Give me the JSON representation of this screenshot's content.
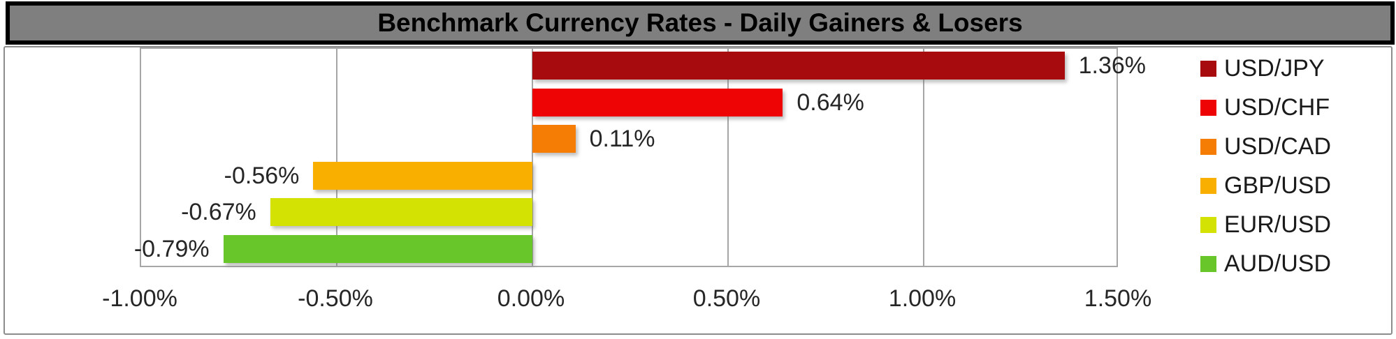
{
  "chart_data": {
    "type": "bar",
    "orientation": "horizontal",
    "title": "Benchmark Currency Rates - Daily Gainers & Losers",
    "categories": [
      "USD/JPY",
      "USD/CHF",
      "USD/CAD",
      "GBP/USD",
      "EUR/USD",
      "AUD/USD"
    ],
    "values": [
      1.36,
      0.64,
      0.11,
      -0.56,
      -0.67,
      -0.79
    ],
    "value_labels": [
      "1.36%",
      "0.64%",
      "0.11%",
      "-0.56%",
      "-0.67%",
      "-0.79%"
    ],
    "bar_colors": [
      "#a80b0d",
      "#ee0404",
      "#f57d05",
      "#f8af00",
      "#d3e203",
      "#68c62b"
    ],
    "x_axis": {
      "min": -1.0,
      "max": 1.5,
      "tick_step": 0.5,
      "ticks": [
        -1.0,
        -0.5,
        0.0,
        0.5,
        1.0,
        1.5
      ],
      "tick_labels": [
        "-1.00%",
        "-0.50%",
        "0.00%",
        "0.50%",
        "1.00%",
        "1.50%"
      ]
    },
    "legend": {
      "position": "right",
      "entries": [
        "USD/JPY",
        "USD/CHF",
        "USD/CAD",
        "GBP/USD",
        "EUR/USD",
        "AUD/USD"
      ]
    },
    "grid": true
  },
  "colors": {
    "title_bar_bg": "#7f7f7f",
    "title_bar_border": "#000000",
    "chart_box_border": "#8c8c8c",
    "plot_border": "#a6a6a6",
    "gridline": "#a6a6a6",
    "label_text": "#262626"
  }
}
